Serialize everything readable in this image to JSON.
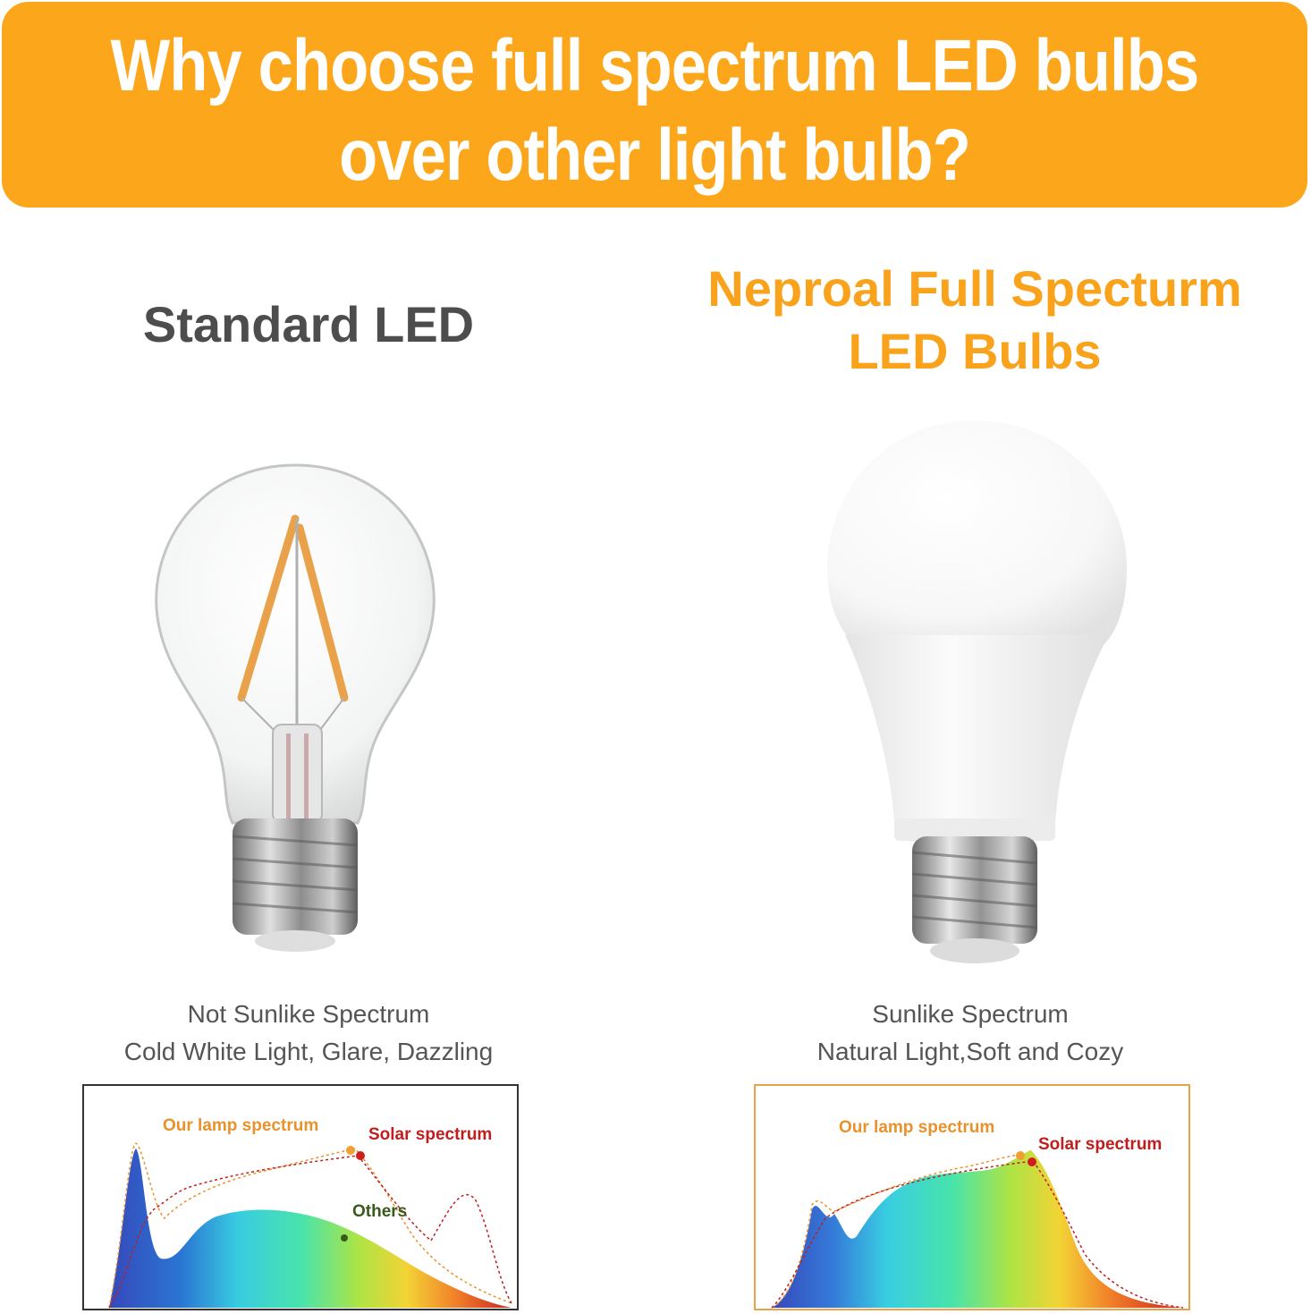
{
  "banner": {
    "title_line1": "Why choose full spectrum LED bulbs",
    "title_line2": "over other light bulb?",
    "color": "#fca61c"
  },
  "left": {
    "heading": "Standard LED",
    "caption_line1": "Not Sunlike Spectrum",
    "caption_line2": "Cold White Light, Glare, Dazzling",
    "bulb_icon": "clear-filament-bulb-icon",
    "chart": {
      "label_lamp": "Our lamp spectrum",
      "label_solar": "Solar spectrum",
      "label_others": "Others"
    }
  },
  "right": {
    "heading_line1": "Neproal Full Specturm",
    "heading_line2": "LED Bulbs",
    "heading_color": "#f9a21b",
    "caption_line1": "Sunlike Spectrum",
    "caption_line2": "Natural Light,Soft and Cozy",
    "bulb_icon": "frosted-led-bulb-icon",
    "chart": {
      "label_lamp": "Our lamp spectrum",
      "label_solar": "Solar spectrum"
    }
  }
}
